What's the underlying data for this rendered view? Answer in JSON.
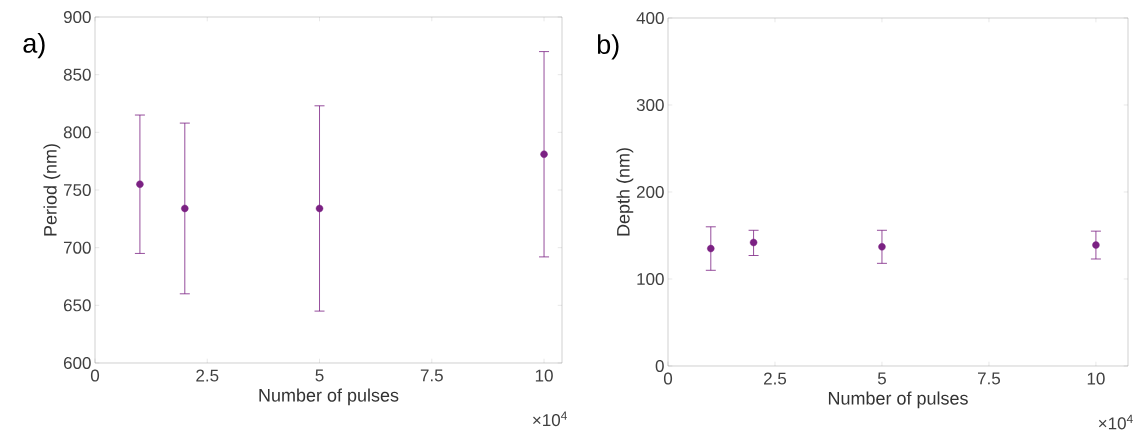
{
  "chart_data": [
    {
      "type": "scatter",
      "title": "a)",
      "xlabel": "Number of pulses",
      "ylabel": "Period (nm)",
      "x": [
        1,
        2,
        5,
        10
      ],
      "series": [
        {
          "color": "#7b2183",
          "values": [
            755,
            734,
            734,
            781
          ],
          "errors": [
            [
              695,
              815
            ],
            [
              660,
              808
            ],
            [
              645,
              823
            ],
            [
              692,
              870
            ]
          ]
        }
      ],
      "xlim": [
        0,
        10.4
      ],
      "ylim": [
        600,
        900
      ],
      "xticks": [
        0,
        2.5,
        5,
        7.5,
        10
      ],
      "yticks": [
        600,
        650,
        700,
        750,
        800,
        850,
        900
      ],
      "marker": "circle",
      "annotations": [
        "×10$^{4}$"
      ]
    },
    {
      "type": "scatter",
      "title": "b)",
      "xlabel": "Number of pulses",
      "ylabel": "Depth (nm)",
      "x": [
        1,
        2,
        5,
        10
      ],
      "series": [
        {
          "color": "#7b2183",
          "values": [
            135,
            142,
            137,
            139
          ],
          "errors": [
            [
              110,
              160
            ],
            [
              127,
              156
            ],
            [
              118,
              156
            ],
            [
              123,
              155
            ]
          ]
        }
      ],
      "xlim": [
        0,
        10.75
      ],
      "ylim": [
        0,
        400
      ],
      "xticks": [
        0,
        2.5,
        5,
        7.5,
        10
      ],
      "yticks": [
        0,
        100,
        200,
        300,
        400
      ],
      "marker": "circle",
      "annotations": [
        "×10$^{4}$"
      ]
    }
  ]
}
